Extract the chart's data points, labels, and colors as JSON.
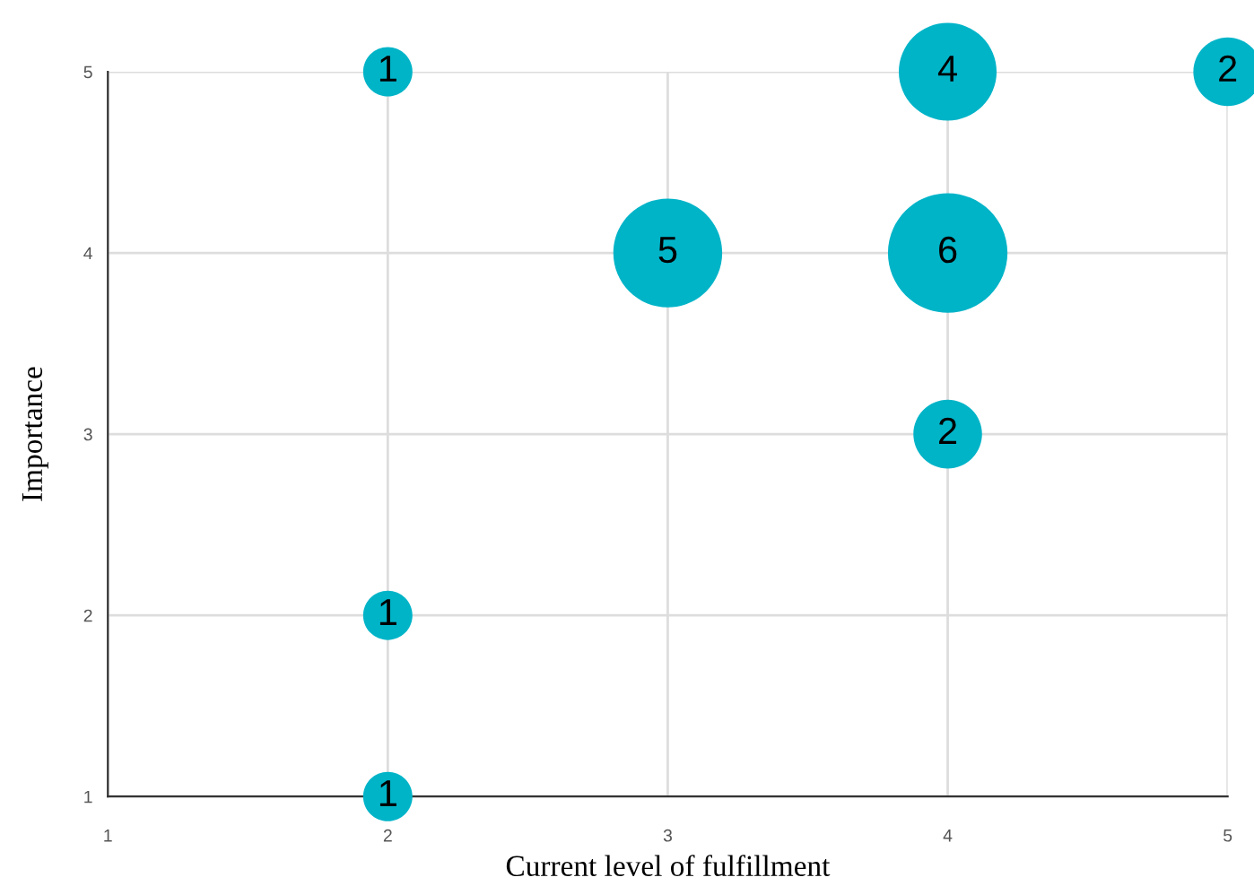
{
  "chart_data": {
    "type": "bubble",
    "xlabel": "Current level of fulfillment",
    "ylabel": "Importance",
    "x": [
      2,
      4,
      5,
      3,
      4,
      4,
      2,
      2
    ],
    "values": [
      5,
      5,
      5,
      4,
      4,
      3,
      2,
      1
    ],
    "sizes": [
      0.17,
      0.67,
      0.33,
      0.83,
      1,
      0.33,
      0.17,
      0.17
    ],
    "annotations": [
      {
        "text": "1",
        "x": 2,
        "y": 5
      },
      {
        "text": "4",
        "x": 4,
        "y": 5
      },
      {
        "text": "2",
        "x": 5,
        "y": 5
      },
      {
        "text": "5",
        "x": 3,
        "y": 4
      },
      {
        "text": "6",
        "x": 4,
        "y": 4
      },
      {
        "text": "2",
        "x": 4,
        "y": 3
      },
      {
        "text": "1",
        "x": 2,
        "y": 2
      },
      {
        "text": "1",
        "x": 2,
        "y": 1
      }
    ],
    "color": "#00b4c8",
    "xlim": [
      1,
      5
    ],
    "ylim": [
      1,
      5
    ],
    "xticks": [
      1,
      2,
      3,
      4,
      5
    ],
    "yticks": [
      1,
      2,
      3,
      4,
      5
    ],
    "grid": true
  }
}
